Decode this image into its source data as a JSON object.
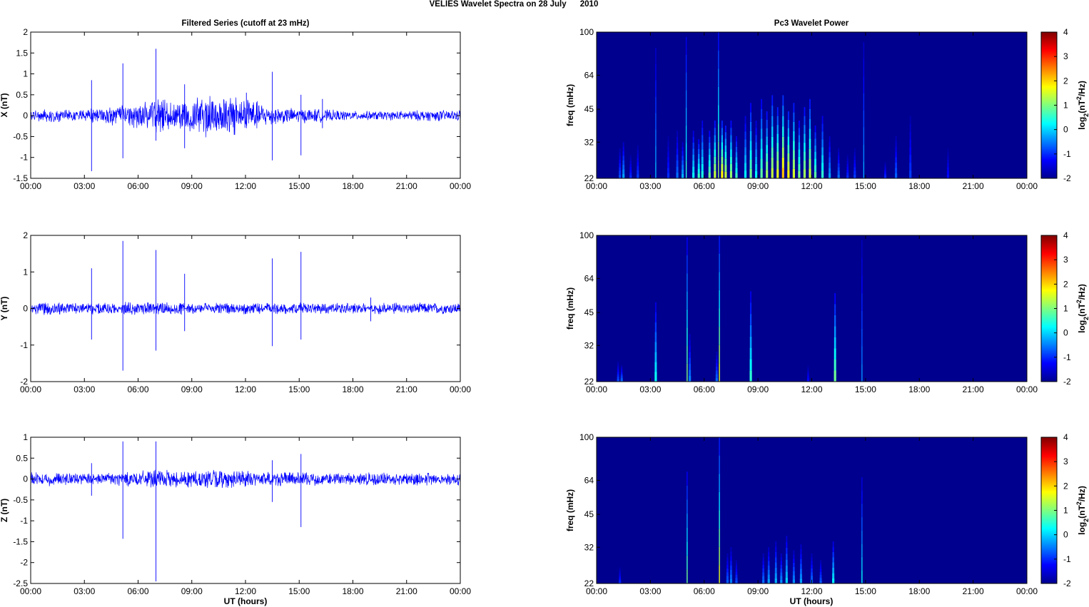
{
  "figure": {
    "title": "VELIES Wavelet Spectra on 28 July      2010",
    "left_title": "Filtered Series (cutoff at 23 mHz)",
    "right_title": "Pc3 Wavelet Power",
    "x_label": "UT (hours)"
  },
  "colors": {
    "trace": "#0000ff",
    "background": "#00008f",
    "axes": "#000000"
  },
  "chart_data": [
    {
      "type": "line",
      "ylabel": "X (nT)",
      "x_ticklabels": [
        "00:00",
        "03:00",
        "06:00",
        "09:00",
        "12:00",
        "15:00",
        "18:00",
        "21:00",
        "00:00"
      ],
      "xlim": [
        0,
        24
      ],
      "ylim": [
        -1.5,
        2
      ],
      "y_ticks": [
        -1.5,
        -1,
        -0.5,
        0,
        0.5,
        1,
        1.5,
        2
      ],
      "y_ticklabels": [
        "-1.5",
        "-1",
        "-0.5",
        "0",
        "0.5",
        "1",
        "1.5",
        "2"
      ],
      "envelope": {
        "hours": [
          0,
          1,
          2,
          3,
          4,
          5,
          6,
          7,
          8,
          9,
          10,
          11,
          12,
          13,
          14,
          15,
          16,
          17,
          18,
          19,
          20,
          21,
          22,
          23,
          24
        ],
        "amplitude": [
          0.12,
          0.15,
          0.12,
          0.14,
          0.18,
          0.22,
          0.28,
          0.38,
          0.3,
          0.4,
          0.48,
          0.42,
          0.45,
          0.25,
          0.18,
          0.16,
          0.15,
          0.12,
          0.1,
          0.1,
          0.1,
          0.11,
          0.12,
          0.12,
          0.12
        ]
      },
      "spikes": [
        {
          "t": 3.4,
          "hi": 0.85,
          "lo": -1.33
        },
        {
          "t": 5.15,
          "hi": 1.25,
          "lo": -1.02
        },
        {
          "t": 7.0,
          "hi": 1.6,
          "lo": -0.6
        },
        {
          "t": 8.6,
          "hi": 0.75,
          "lo": -0.78
        },
        {
          "t": 13.5,
          "hi": 1.05,
          "lo": -1.07
        },
        {
          "t": 15.1,
          "hi": 0.5,
          "lo": -0.95
        },
        {
          "t": 12.05,
          "hi": 0.55,
          "lo": -0.3
        },
        {
          "t": 16.3,
          "hi": 0.4,
          "lo": -0.3
        }
      ]
    },
    {
      "type": "line",
      "ylabel": "Y (nT)",
      "x_ticklabels": [
        "00:00",
        "03:00",
        "06:00",
        "09:00",
        "12:00",
        "15:00",
        "18:00",
        "21:00",
        "00:00"
      ],
      "xlim": [
        0,
        24
      ],
      "ylim": [
        -2,
        2
      ],
      "y_ticks": [
        -2,
        -1,
        0,
        1,
        2
      ],
      "y_ticklabels": [
        "-2",
        "-1",
        "0",
        "1",
        "2"
      ],
      "envelope": {
        "hours": [
          0,
          1,
          2,
          3,
          4,
          5,
          6,
          7,
          8,
          9,
          10,
          11,
          12,
          13,
          14,
          15,
          16,
          17,
          18,
          19,
          20,
          21,
          22,
          23,
          24
        ],
        "amplitude": [
          0.14,
          0.16,
          0.15,
          0.15,
          0.16,
          0.16,
          0.16,
          0.16,
          0.15,
          0.14,
          0.14,
          0.14,
          0.14,
          0.14,
          0.14,
          0.14,
          0.14,
          0.14,
          0.14,
          0.14,
          0.14,
          0.14,
          0.14,
          0.14,
          0.14
        ]
      },
      "spikes": [
        {
          "t": 3.4,
          "hi": 1.1,
          "lo": -0.85
        },
        {
          "t": 5.15,
          "hi": 1.85,
          "lo": -1.7
        },
        {
          "t": 7.0,
          "hi": 1.6,
          "lo": -1.15
        },
        {
          "t": 8.6,
          "hi": 0.95,
          "lo": -0.62
        },
        {
          "t": 13.5,
          "hi": 1.37,
          "lo": -1.03
        },
        {
          "t": 15.1,
          "hi": 1.55,
          "lo": -0.85
        },
        {
          "t": 19.0,
          "hi": 0.3,
          "lo": -0.35
        }
      ]
    },
    {
      "type": "line",
      "ylabel": "Z (nT)",
      "x_ticklabels": [
        "00:00",
        "03:00",
        "06:00",
        "09:00",
        "12:00",
        "15:00",
        "18:00",
        "21:00",
        "00:00"
      ],
      "xlim": [
        0,
        24
      ],
      "ylim": [
        -2.5,
        1
      ],
      "y_ticks": [
        -2.5,
        -2,
        -1.5,
        -1,
        -0.5,
        0,
        0.5,
        1
      ],
      "y_ticklabels": [
        "-2.5",
        "-2",
        "-1.5",
        "-1",
        "-0.5",
        "0",
        "0.5",
        "1"
      ],
      "envelope": {
        "hours": [
          0,
          1,
          2,
          3,
          4,
          5,
          6,
          7,
          8,
          9,
          10,
          11,
          12,
          13,
          14,
          15,
          16,
          17,
          18,
          19,
          20,
          21,
          22,
          23,
          24
        ],
        "amplitude": [
          0.14,
          0.15,
          0.14,
          0.14,
          0.15,
          0.16,
          0.17,
          0.2,
          0.18,
          0.2,
          0.22,
          0.2,
          0.18,
          0.17,
          0.16,
          0.15,
          0.14,
          0.14,
          0.14,
          0.14,
          0.14,
          0.14,
          0.14,
          0.14,
          0.14
        ]
      },
      "spikes": [
        {
          "t": 3.4,
          "hi": 0.38,
          "lo": -0.4
        },
        {
          "t": 5.15,
          "hi": 0.9,
          "lo": -1.43
        },
        {
          "t": 7.0,
          "hi": 0.9,
          "lo": -2.45
        },
        {
          "t": 13.5,
          "hi": 0.45,
          "lo": -0.55
        },
        {
          "t": 15.1,
          "hi": 0.6,
          "lo": -1.15
        }
      ]
    },
    {
      "type": "heatmap",
      "ylabel": "freq (mHz)",
      "scale": "log",
      "ylim": [
        22,
        100
      ],
      "y_ticks": [
        22,
        32,
        45,
        64,
        100
      ],
      "y_ticklabels": [
        "22",
        "32",
        "45",
        "64",
        "100"
      ],
      "x_ticklabels": [
        "00:00",
        "03:00",
        "06:00",
        "09:00",
        "12:00",
        "15:00",
        "18:00",
        "21:00",
        "00:00"
      ],
      "xlim": [
        0,
        24
      ],
      "colorbar": {
        "label": "log2(nT2/Hz)",
        "range": [
          -2,
          4
        ],
        "ticks": [
          4,
          3,
          2,
          1,
          0,
          -1,
          -2
        ],
        "ticklabels": [
          "4",
          "3",
          "2",
          "1",
          "0",
          "-1",
          "-2"
        ]
      },
      "events": [
        {
          "t": 1.3,
          "fmax": 30,
          "power": -0.8
        },
        {
          "t": 1.5,
          "fmax": 32,
          "power": -0.3
        },
        {
          "t": 1.9,
          "fmax": 28,
          "power": -1.0
        },
        {
          "t": 2.3,
          "fmax": 31,
          "power": -0.9
        },
        {
          "t": 3.3,
          "fmax": 85,
          "power": -0.2
        },
        {
          "t": 4.0,
          "fmax": 34,
          "power": -1.0
        },
        {
          "t": 4.5,
          "fmax": 36,
          "power": -0.6
        },
        {
          "t": 4.8,
          "fmax": 32,
          "power": -0.2
        },
        {
          "t": 5.0,
          "fmax": 95,
          "power": 0.5
        },
        {
          "t": 5.4,
          "fmax": 36,
          "power": 0.3
        },
        {
          "t": 5.7,
          "fmax": 33,
          "power": 0.6
        },
        {
          "t": 5.9,
          "fmax": 40,
          "power": 0.4
        },
        {
          "t": 6.3,
          "fmax": 36,
          "power": 0.9
        },
        {
          "t": 6.6,
          "fmax": 40,
          "power": 1.4
        },
        {
          "t": 6.8,
          "fmax": 100,
          "power": 1.2
        },
        {
          "t": 7.0,
          "fmax": 40,
          "power": 1.8
        },
        {
          "t": 7.2,
          "fmax": 38,
          "power": 1.4
        },
        {
          "t": 7.5,
          "fmax": 40,
          "power": 1.1
        },
        {
          "t": 7.8,
          "fmax": 34,
          "power": 0.6
        },
        {
          "t": 8.3,
          "fmax": 42,
          "power": 0.2
        },
        {
          "t": 8.6,
          "fmax": 48,
          "power": 0.9
        },
        {
          "t": 8.9,
          "fmax": 40,
          "power": 0.2
        },
        {
          "t": 9.2,
          "fmax": 50,
          "power": 0.8
        },
        {
          "t": 9.5,
          "fmax": 44,
          "power": 1.2
        },
        {
          "t": 9.8,
          "fmax": 52,
          "power": 1.4
        },
        {
          "t": 10.1,
          "fmax": 46,
          "power": 1.6
        },
        {
          "t": 10.4,
          "fmax": 52,
          "power": 2.1
        },
        {
          "t": 10.7,
          "fmax": 44,
          "power": 1.8
        },
        {
          "t": 11.0,
          "fmax": 48,
          "power": 1.5
        },
        {
          "t": 11.3,
          "fmax": 40,
          "power": 1.0
        },
        {
          "t": 11.6,
          "fmax": 46,
          "power": 1.2
        },
        {
          "t": 11.9,
          "fmax": 50,
          "power": 1.4
        },
        {
          "t": 12.2,
          "fmax": 38,
          "power": 0.8
        },
        {
          "t": 12.6,
          "fmax": 42,
          "power": 0.5
        },
        {
          "t": 13.0,
          "fmax": 34,
          "power": -0.3
        },
        {
          "t": 13.5,
          "fmax": 30,
          "power": -0.6
        },
        {
          "t": 14.0,
          "fmax": 28,
          "power": -1.0
        },
        {
          "t": 14.4,
          "fmax": 30,
          "power": -0.9
        },
        {
          "t": 14.9,
          "fmax": 90,
          "power": -0.3
        },
        {
          "t": 16.1,
          "fmax": 26,
          "power": -1.0
        },
        {
          "t": 16.7,
          "fmax": 34,
          "power": -0.7
        },
        {
          "t": 17.5,
          "fmax": 42,
          "power": -0.9
        },
        {
          "t": 19.6,
          "fmax": 30,
          "power": -1.2
        }
      ]
    },
    {
      "type": "heatmap",
      "ylabel": "freq (mHz)",
      "scale": "log",
      "ylim": [
        22,
        100
      ],
      "y_ticks": [
        22,
        32,
        45,
        64,
        100
      ],
      "y_ticklabels": [
        "22",
        "32",
        "45",
        "64",
        "100"
      ],
      "x_ticklabels": [
        "00:00",
        "03:00",
        "06:00",
        "09:00",
        "12:00",
        "15:00",
        "18:00",
        "21:00",
        "00:00"
      ],
      "xlim": [
        0,
        24
      ],
      "colorbar": {
        "label": "log2(nT2/Hz)",
        "range": [
          -2,
          4
        ],
        "ticks": [
          4,
          3,
          2,
          1,
          0,
          -1,
          -2
        ],
        "ticklabels": [
          "4",
          "3",
          "2",
          "1",
          "0",
          "-1",
          "-2"
        ]
      },
      "events": [
        {
          "t": 1.2,
          "fmax": 27,
          "power": -0.8
        },
        {
          "t": 1.4,
          "fmax": 26,
          "power": -0.6
        },
        {
          "t": 3.3,
          "fmax": 50,
          "power": 0.3
        },
        {
          "t": 5.05,
          "fmax": 98,
          "power": 1.0
        },
        {
          "t": 5.2,
          "fmax": 36,
          "power": -0.5
        },
        {
          "t": 6.7,
          "fmax": 30,
          "power": -0.6
        },
        {
          "t": 6.85,
          "fmax": 100,
          "power": 1.6
        },
        {
          "t": 8.6,
          "fmax": 56,
          "power": 0.5
        },
        {
          "t": 13.3,
          "fmax": 55,
          "power": 0.9
        },
        {
          "t": 14.8,
          "fmax": 95,
          "power": -0.4
        },
        {
          "t": 11.8,
          "fmax": 26,
          "power": -1.2
        }
      ]
    },
    {
      "type": "heatmap",
      "ylabel": "freq (mHz)",
      "scale": "log",
      "ylim": [
        22,
        100
      ],
      "y_ticks": [
        22,
        32,
        45,
        64,
        100
      ],
      "y_ticklabels": [
        "22",
        "32",
        "45",
        "64",
        "100"
      ],
      "x_ticklabels": [
        "00:00",
        "03:00",
        "06:00",
        "09:00",
        "12:00",
        "15:00",
        "18:00",
        "21:00",
        "00:00"
      ],
      "xlim": [
        0,
        24
      ],
      "colorbar": {
        "label": "log2(nT2/Hz)",
        "range": [
          -2,
          4
        ],
        "ticks": [
          4,
          3,
          2,
          1,
          0,
          -1,
          -2
        ],
        "ticklabels": [
          "4",
          "3",
          "2",
          "1",
          "0",
          "-1",
          "-2"
        ]
      },
      "events": [
        {
          "t": 1.3,
          "fmax": 26,
          "power": -1.0
        },
        {
          "t": 5.05,
          "fmax": 70,
          "power": 0.9
        },
        {
          "t": 6.85,
          "fmax": 100,
          "power": 1.6
        },
        {
          "t": 7.3,
          "fmax": 30,
          "power": -0.7
        },
        {
          "t": 7.5,
          "fmax": 32,
          "power": -0.5
        },
        {
          "t": 7.8,
          "fmax": 28,
          "power": -0.8
        },
        {
          "t": 9.3,
          "fmax": 30,
          "power": -0.6
        },
        {
          "t": 9.6,
          "fmax": 32,
          "power": -0.3
        },
        {
          "t": 10.0,
          "fmax": 34,
          "power": -0.2
        },
        {
          "t": 10.3,
          "fmax": 30,
          "power": -0.4
        },
        {
          "t": 10.6,
          "fmax": 36,
          "power": 0.0
        },
        {
          "t": 11.0,
          "fmax": 31,
          "power": -0.4
        },
        {
          "t": 11.4,
          "fmax": 33,
          "power": -0.3
        },
        {
          "t": 12.0,
          "fmax": 30,
          "power": -0.6
        },
        {
          "t": 12.5,
          "fmax": 28,
          "power": -0.7
        },
        {
          "t": 13.2,
          "fmax": 34,
          "power": 0.2
        },
        {
          "t": 14.8,
          "fmax": 66,
          "power": 0.2
        }
      ]
    }
  ]
}
